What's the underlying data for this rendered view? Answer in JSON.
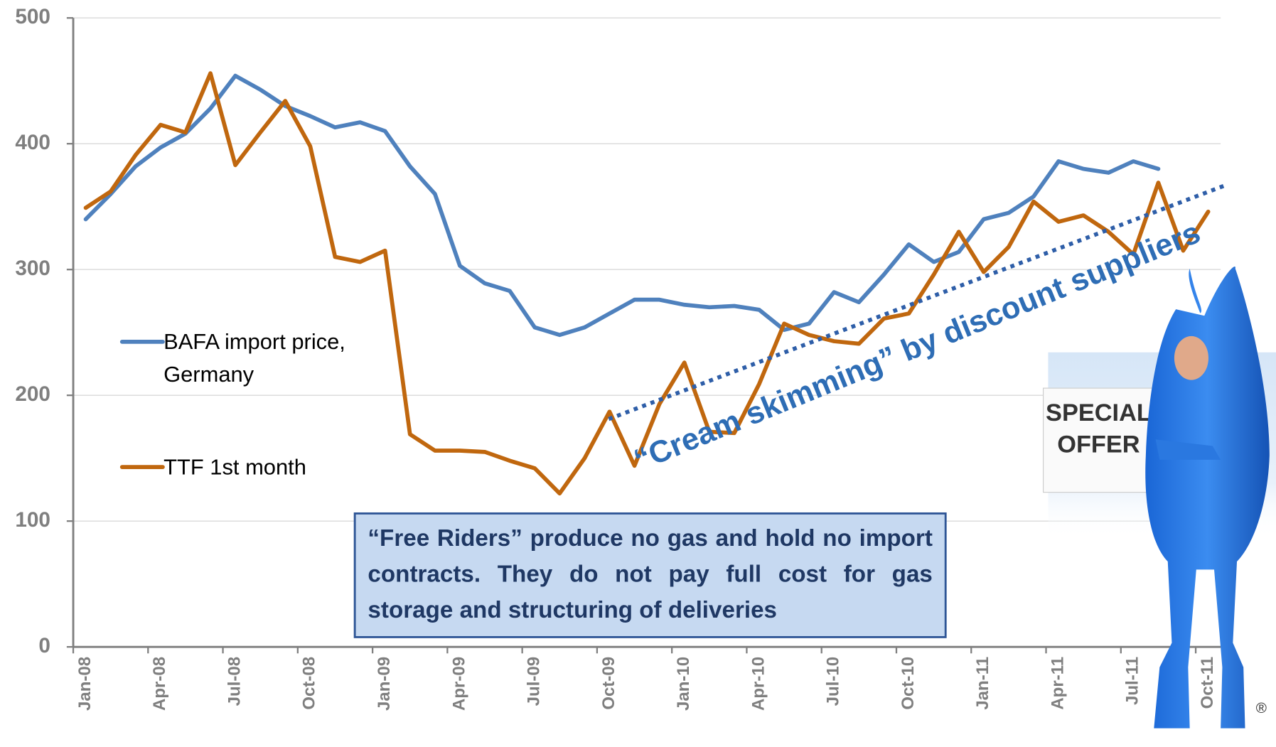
{
  "chart_data": {
    "type": "line",
    "categories": [
      "Jan-08",
      null,
      null,
      "Apr-08",
      null,
      null,
      "Jul-08",
      null,
      null,
      "Oct-08",
      null,
      null,
      "Jan-09",
      null,
      null,
      "Apr-09",
      null,
      null,
      "Jul-09",
      null,
      null,
      "Oct-09",
      null,
      null,
      "Jan-10",
      null,
      null,
      "Apr-10",
      null,
      null,
      "Jul-10",
      null,
      null,
      "Oct-10",
      null,
      null,
      "Jan-11",
      null,
      null,
      "Apr-11",
      null,
      null,
      "Jul-11",
      null,
      null,
      "Oct-11"
    ],
    "series": [
      {
        "name": "BAFA import price, Germany",
        "color": "#4f81bd",
        "values": [
          340,
          360,
          382,
          397,
          408,
          428,
          454,
          443,
          430,
          422,
          413,
          417,
          410,
          382,
          360,
          303,
          289,
          283,
          254,
          248,
          254,
          265,
          276,
          276,
          272,
          270,
          271,
          268,
          252,
          257,
          282,
          274,
          296,
          320,
          306,
          314,
          340,
          345,
          358,
          386,
          380,
          377,
          386,
          380,
          null,
          null
        ]
      },
      {
        "name": "TTF 1st month",
        "color": "#c0670e",
        "values": [
          349,
          362,
          391,
          415,
          409,
          456,
          383,
          409,
          434,
          398,
          310,
          306,
          315,
          169,
          156,
          156,
          155,
          148,
          142,
          122,
          150,
          187,
          144,
          193,
          226,
          171,
          170,
          209,
          257,
          248,
          243,
          241,
          261,
          265,
          296,
          330,
          298,
          318,
          354,
          338,
          343,
          330,
          312,
          369,
          315,
          346
        ]
      }
    ],
    "ylim": [
      0,
      500
    ],
    "yticks": [
      0,
      100,
      200,
      300,
      400,
      500
    ],
    "grid": true,
    "legend": "left",
    "annotations": {
      "trend": "“Cream skimming” by discount suppliers",
      "box": "“Free Riders” produce no gas and hold no import contracts. They do not pay full cost for gas storage and structuring of deliveries",
      "sign": [
        "SPECIAL",
        "OFFER"
      ],
      "mark": "®"
    }
  }
}
